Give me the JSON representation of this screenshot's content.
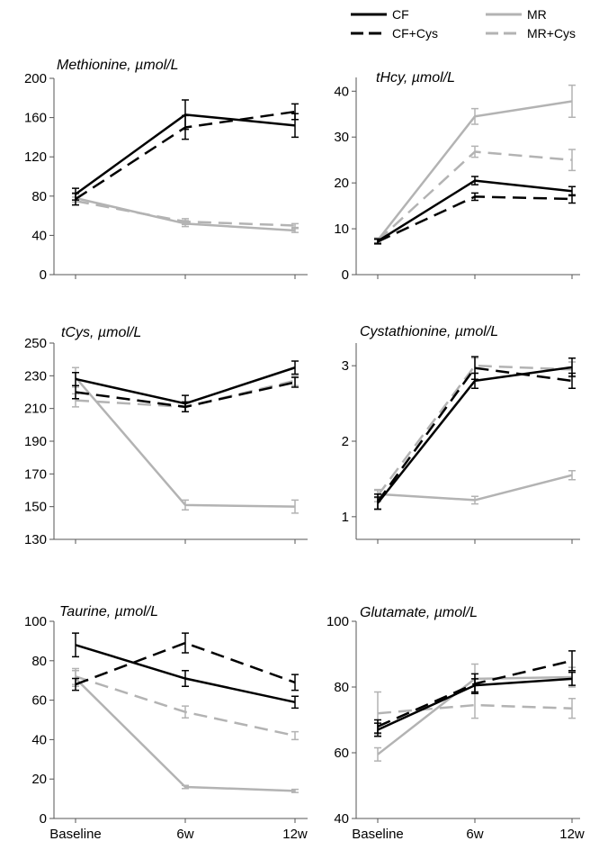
{
  "legend": {
    "items": [
      {
        "label": "CF",
        "color": "#000000",
        "dashed": false
      },
      {
        "label": "MR",
        "color": "#b3b3b3",
        "dashed": false
      },
      {
        "label": "CF+Cys",
        "color": "#000000",
        "dashed": true
      },
      {
        "label": "MR+Cys",
        "color": "#b3b3b3",
        "dashed": true
      }
    ]
  },
  "chart_data": [
    {
      "type": "line",
      "title": "Methionine, µmol/L",
      "categories": [
        "Baseline",
        "6w",
        "12w"
      ],
      "xtick_labels_shown": false,
      "ylim": [
        0,
        200
      ],
      "yticks": [
        "0",
        "40",
        "80",
        "120",
        "160",
        "200"
      ],
      "series": [
        {
          "name": "CF",
          "values": [
            82,
            163,
            152
          ],
          "err": [
            6,
            15,
            12
          ]
        },
        {
          "name": "CF+Cys",
          "values": [
            77,
            150,
            166
          ],
          "err": [
            6,
            12,
            8
          ]
        },
        {
          "name": "MR",
          "values": [
            78,
            52,
            45
          ],
          "err": [
            4,
            3,
            2
          ]
        },
        {
          "name": "MR+Cys",
          "values": [
            75,
            54,
            50
          ],
          "err": [
            4,
            3,
            2
          ]
        }
      ]
    },
    {
      "type": "line",
      "title": "tHcy, µmol/L",
      "categories": [
        "Baseline",
        "6w",
        "12w"
      ],
      "xtick_labels_shown": false,
      "ylim": [
        0,
        43
      ],
      "yticks": [
        "0",
        "10",
        "20",
        "30",
        "40"
      ],
      "series": [
        {
          "name": "CF",
          "values": [
            7.3,
            20.5,
            18.2
          ],
          "err": [
            0.5,
            0.9,
            1.0
          ]
        },
        {
          "name": "CF+Cys",
          "values": [
            7.2,
            17.0,
            16.5
          ],
          "err": [
            0.5,
            0.8,
            0.9
          ]
        },
        {
          "name": "MR",
          "values": [
            7.5,
            34.5,
            37.8
          ],
          "err": [
            0.5,
            1.7,
            3.5
          ]
        },
        {
          "name": "MR+Cys",
          "values": [
            7.4,
            26.8,
            25.0
          ],
          "err": [
            0.5,
            1.2,
            2.3
          ]
        }
      ]
    },
    {
      "type": "line",
      "title": "tCys, µmol/L",
      "categories": [
        "Baseline",
        "6w",
        "12w"
      ],
      "xtick_labels_shown": false,
      "ylim": [
        130,
        250
      ],
      "yticks": [
        "130",
        "150",
        "170",
        "190",
        "210",
        "230",
        "250"
      ],
      "series": [
        {
          "name": "CF",
          "values": [
            228,
            213,
            235
          ],
          "err": [
            4,
            5,
            4
          ]
        },
        {
          "name": "CF+Cys",
          "values": [
            220,
            211,
            226
          ],
          "err": [
            4,
            3,
            3
          ]
        },
        {
          "name": "MR",
          "values": [
            229,
            151,
            150
          ],
          "err": [
            6,
            3,
            4
          ]
        },
        {
          "name": "MR+Cys",
          "values": [
            215,
            211,
            227
          ],
          "err": [
            4,
            3,
            3
          ]
        }
      ]
    },
    {
      "type": "line",
      "title": "Cystathionine, µmol/L",
      "categories": [
        "Baseline",
        "6w",
        "12w"
      ],
      "xtick_labels_shown": false,
      "ylim": [
        0.7,
        3.3
      ],
      "yticks": [
        "1",
        "2",
        "3"
      ],
      "series": [
        {
          "name": "CF",
          "values": [
            1.18,
            2.8,
            2.98
          ],
          "err": [
            0.08,
            0.1,
            0.12
          ]
        },
        {
          "name": "CF+Cys",
          "values": [
            1.2,
            2.97,
            2.8
          ],
          "err": [
            0.1,
            0.15,
            0.1
          ]
        },
        {
          "name": "MR",
          "values": [
            1.3,
            1.22,
            1.55
          ],
          "err": [
            0.05,
            0.05,
            0.06
          ]
        },
        {
          "name": "MR+Cys",
          "values": [
            1.28,
            3.0,
            2.95
          ],
          "err": [
            0.08,
            0.1,
            0.1
          ]
        }
      ]
    },
    {
      "type": "line",
      "title": "Taurine, µmol/L",
      "categories": [
        "Baseline",
        "6w",
        "12w"
      ],
      "xtick_labels_shown": true,
      "ylim": [
        0,
        100
      ],
      "yticks": [
        "0",
        "20",
        "40",
        "60",
        "80",
        "100"
      ],
      "series": [
        {
          "name": "CF",
          "values": [
            88,
            71,
            59
          ],
          "err": [
            6,
            4,
            3
          ]
        },
        {
          "name": "CF+Cys",
          "values": [
            68,
            89,
            69
          ],
          "err": [
            3,
            5,
            4
          ]
        },
        {
          "name": "MR",
          "values": [
            71,
            16,
            14
          ],
          "err": [
            4,
            0.8,
            0.8
          ]
        },
        {
          "name": "MR+Cys",
          "values": [
            72,
            54,
            42
          ],
          "err": [
            4,
            3,
            2
          ]
        }
      ]
    },
    {
      "type": "line",
      "title": "Glutamate, µmol/L",
      "categories": [
        "Baseline",
        "6w",
        "12w"
      ],
      "xtick_labels_shown": true,
      "ylim": [
        40,
        100
      ],
      "yticks": [
        "40",
        "60",
        "80",
        "100"
      ],
      "series": [
        {
          "name": "CF",
          "values": [
            67,
            80.5,
            82.5
          ],
          "err": [
            2,
            2,
            2
          ]
        },
        {
          "name": "CF+Cys",
          "values": [
            68,
            81,
            88
          ],
          "err": [
            2,
            3,
            3
          ]
        },
        {
          "name": "MR",
          "values": [
            59.5,
            82.5,
            83
          ],
          "err": [
            2,
            4.5,
            3
          ]
        },
        {
          "name": "MR+Cys",
          "values": [
            72,
            74.5,
            73.5
          ],
          "err": [
            6.5,
            4,
            3
          ]
        }
      ]
    }
  ]
}
